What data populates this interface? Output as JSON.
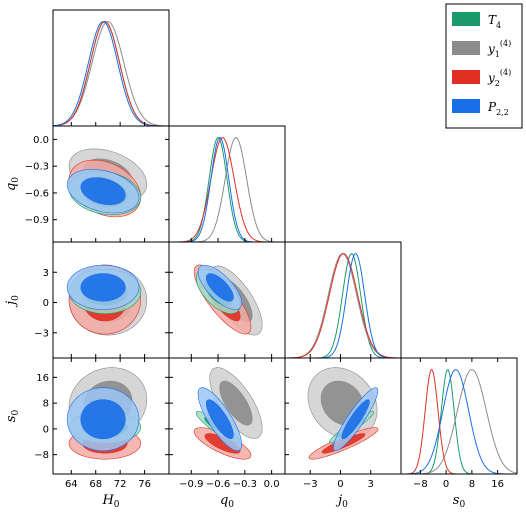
{
  "chart_data": {
    "type": "corner-contour",
    "title": "",
    "parameters": [
      {
        "key": "H0",
        "label": "H",
        "sub": "0",
        "range": [
          61,
          80
        ],
        "ticks": [
          64,
          68,
          72,
          76
        ],
        "tick_labels": [
          "64",
          "68",
          "72",
          "76"
        ]
      },
      {
        "key": "q0",
        "label": "q",
        "sub": "0",
        "range": [
          -1.15,
          0.15
        ],
        "ticks": [
          -0.9,
          -0.6,
          -0.3,
          0.0
        ],
        "tick_labels": [
          "−0.9",
          "−0.6",
          "−0.3",
          "0.0"
        ]
      },
      {
        "key": "j0",
        "label": "j",
        "sub": "0",
        "range": [
          -5.5,
          6
        ],
        "ticks": [
          -3,
          0,
          3
        ],
        "tick_labels": [
          "−3",
          "0",
          "3"
        ]
      },
      {
        "key": "s0",
        "label": "s",
        "sub": "0",
        "range": [
          -14,
          22
        ],
        "ticks": [
          -8,
          0,
          8,
          16
        ],
        "tick_labels": [
          "−8",
          "0",
          "8",
          "16"
        ]
      }
    ],
    "legend": {
      "placement": "top-right",
      "entries": [
        {
          "main": "T",
          "sub": "4",
          "sup": "",
          "color": "#1a9a6a"
        },
        {
          "main": "y",
          "sub": "1",
          "sup": "(4)",
          "color": "#8c8c8c"
        },
        {
          "main": "y",
          "sub": "2",
          "sup": "(4)",
          "color": "#e03024"
        },
        {
          "main": "P",
          "sub": "2,2",
          "sup": "",
          "color": "#1a6ee8"
        }
      ]
    },
    "series": [
      {
        "name": "T4",
        "color": "#1a9a6a",
        "light": "#a3dcc4",
        "mean": {
          "H0": 69.5,
          "q0": -0.6,
          "j0": 1.1,
          "s0": 0.5
        },
        "sd": {
          "H0": 2.4,
          "q0": 0.1,
          "j0": 0.9,
          "s0": 2.0
        },
        "corr": {
          "H0|q0": -0.2,
          "H0|j0": 0.0,
          "q0|j0": -0.6,
          "H0|s0": 0.0,
          "q0|s0": -0.9,
          "j0|s0": 0.95
        }
      },
      {
        "name": "y1(4)",
        "color": "#8c8c8c",
        "light": "#cfcfcf",
        "mean": {
          "H0": 70.0,
          "q0": -0.4,
          "j0": 0.2,
          "s0": 8.0
        },
        "sd": {
          "H0": 2.6,
          "q0": 0.12,
          "j0": 1.4,
          "s0": 4.5
        },
        "corr": {
          "H0|q0": -0.35,
          "H0|j0": 0.0,
          "q0|j0": -0.7,
          "H0|s0": 0.1,
          "q0|s0": -0.7,
          "j0|s0": -0.2
        }
      },
      {
        "name": "y2(4)",
        "color": "#e03024",
        "light": "#f2aaa4",
        "mean": {
          "H0": 69.5,
          "q0": -0.55,
          "j0": 0.3,
          "s0": -4.5
        },
        "sd": {
          "H0": 2.4,
          "q0": 0.13,
          "j0": 1.4,
          "s0": 2.0
        },
        "corr": {
          "H0|q0": -0.3,
          "H0|j0": 0.0,
          "q0|j0": -0.8,
          "H0|s0": 0.0,
          "q0|s0": -0.75,
          "j0|s0": 0.9
        }
      },
      {
        "name": "P2,2",
        "color": "#1a6ee8",
        "light": "#9cc5f5",
        "mean": {
          "H0": 69.2,
          "q0": -0.58,
          "j0": 1.5,
          "s0": 3.0
        },
        "sd": {
          "H0": 2.4,
          "q0": 0.1,
          "j0": 0.9,
          "s0": 4.0
        },
        "corr": {
          "H0|q0": -0.3,
          "H0|j0": 0.0,
          "q0|j0": -0.7,
          "H0|s0": 0.0,
          "q0|s0": -0.8,
          "j0|s0": 0.9
        }
      }
    ],
    "order_2d": [
      "y1(4)",
      "y2(4)",
      "T4",
      "P2,2"
    ],
    "grid": false
  }
}
